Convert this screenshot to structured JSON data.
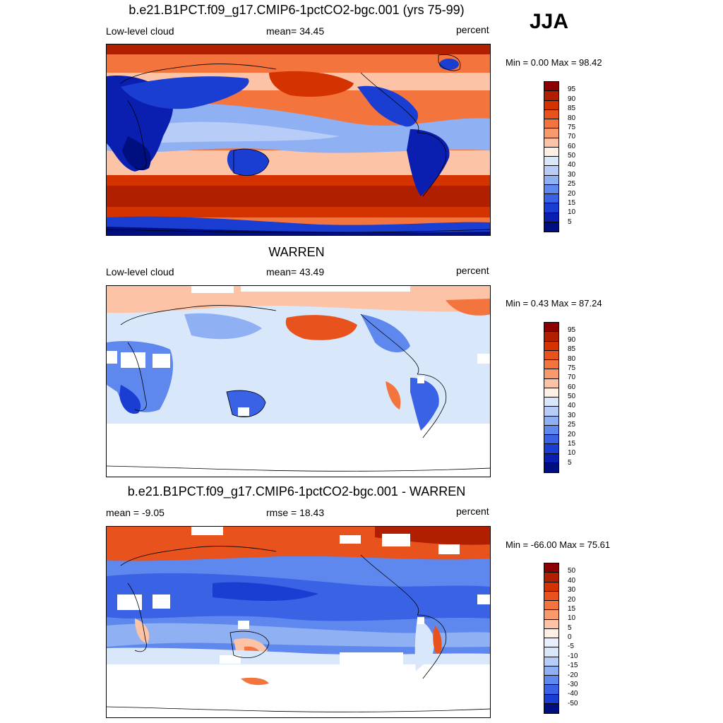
{
  "season": "JJA",
  "panels": [
    {
      "title": "b.e21.B1PCT.f09_g17.CMIP6-1pctCO2-bgc.001 (yrs 75-99)",
      "left_label": "Low-level cloud",
      "center_label": "mean=  34.45",
      "right_label": "percent",
      "minmax": "Min =   0.00 Max =  98.42"
    },
    {
      "title": "WARREN",
      "left_label": "Low-level cloud",
      "center_label": "mean=  43.49",
      "right_label": "percent",
      "minmax": "Min =   0.43 Max =  87.24"
    },
    {
      "title": "b.e21.B1PCT.f09_g17.CMIP6-1pctCO2-bgc.001 - WARREN",
      "left_label": "mean =  -9.05",
      "center_label": "rmse =  18.43",
      "right_label": "percent",
      "minmax": "Min = -66.00 Max =  75.61"
    }
  ],
  "colorbars": {
    "abs_labels": [
      "95",
      "90",
      "85",
      "80",
      "75",
      "70",
      "60",
      "50",
      "40",
      "30",
      "25",
      "20",
      "15",
      "10",
      "5"
    ],
    "abs_colors": [
      "#8b0000",
      "#b01f00",
      "#d43300",
      "#e8521c",
      "#f3743d",
      "#f89a6c",
      "#fcc3a6",
      "#fff0e6",
      "#d9e7fb",
      "#b7cdf7",
      "#8fb0f3",
      "#5f88ee",
      "#3a62e4",
      "#1a3dd2",
      "#0a1fb0",
      "#000f80"
    ],
    "diff_labels": [
      "50",
      "40",
      "30",
      "20",
      "15",
      "10",
      "5",
      "0",
      "-5",
      "-10",
      "-15",
      "-20",
      "-30",
      "-40",
      "-50"
    ],
    "diff_colors": [
      "#8b0000",
      "#b01f00",
      "#d43300",
      "#e8521c",
      "#f3743d",
      "#f89a6c",
      "#fcc3a6",
      "#fff0e6",
      "#e8f0fd",
      "#d9e7fb",
      "#b7cdf7",
      "#8fb0f3",
      "#5f88ee",
      "#3a62e4",
      "#1a3dd2",
      "#000f80"
    ]
  }
}
